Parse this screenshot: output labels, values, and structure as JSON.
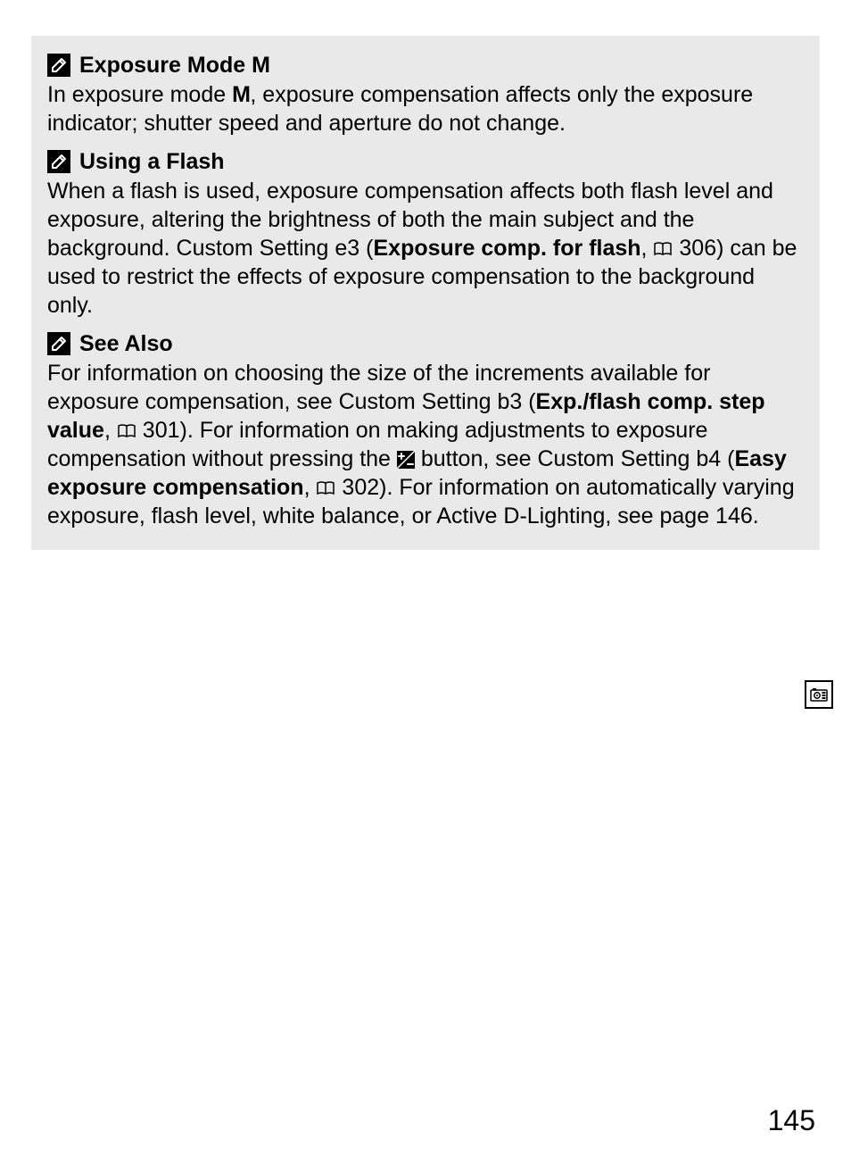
{
  "page_number": "145",
  "colors": {
    "box_bg": "#e9e9e9",
    "page_bg": "#ffffff",
    "text": "#000000"
  },
  "sections": [
    {
      "heading_pre": "Exposure Mode ",
      "heading_mode": "M",
      "body_parts": [
        {
          "t": "In exposure mode "
        },
        {
          "t": "M",
          "cls": "mode-m"
        },
        {
          "t": ", exposure compensation affects only the exposure indicator; shutter speed and aperture do not change."
        }
      ]
    },
    {
      "heading_pre": "Using a Flash",
      "heading_mode": "",
      "body_parts": [
        {
          "t": "When a flash is used, exposure compensation affects both flash level and exposure, altering the brightness of both the main subject and the background.  Custom Setting e3 ("
        },
        {
          "t": "Exposure comp. for flash",
          "cls": "bold"
        },
        {
          "t": ", "
        },
        {
          "icon": "book"
        },
        {
          "t": " 306) can be used to restrict the effects of exposure compensation to the background only."
        }
      ]
    },
    {
      "heading_pre": "See Also",
      "heading_mode": "",
      "body_parts": [
        {
          "t": "For information on choosing the size of the increments available for exposure compensation, see Custom Setting b3 ("
        },
        {
          "t": "Exp./flash comp. step value",
          "cls": "bold"
        },
        {
          "t": ", "
        },
        {
          "icon": "book"
        },
        {
          "t": " 301).  For information on making adjustments to exposure compensation without pressing the "
        },
        {
          "icon": "expcomp"
        },
        {
          "t": " button, see Custom Setting b4 ("
        },
        {
          "t": "Easy exposure compensation",
          "cls": "bold"
        },
        {
          "t": ", "
        },
        {
          "icon": "book"
        },
        {
          "t": " 302).  For information on automatically varying exposure, flash level, white balance, or Active D-Lighting, see page 146."
        }
      ]
    }
  ]
}
